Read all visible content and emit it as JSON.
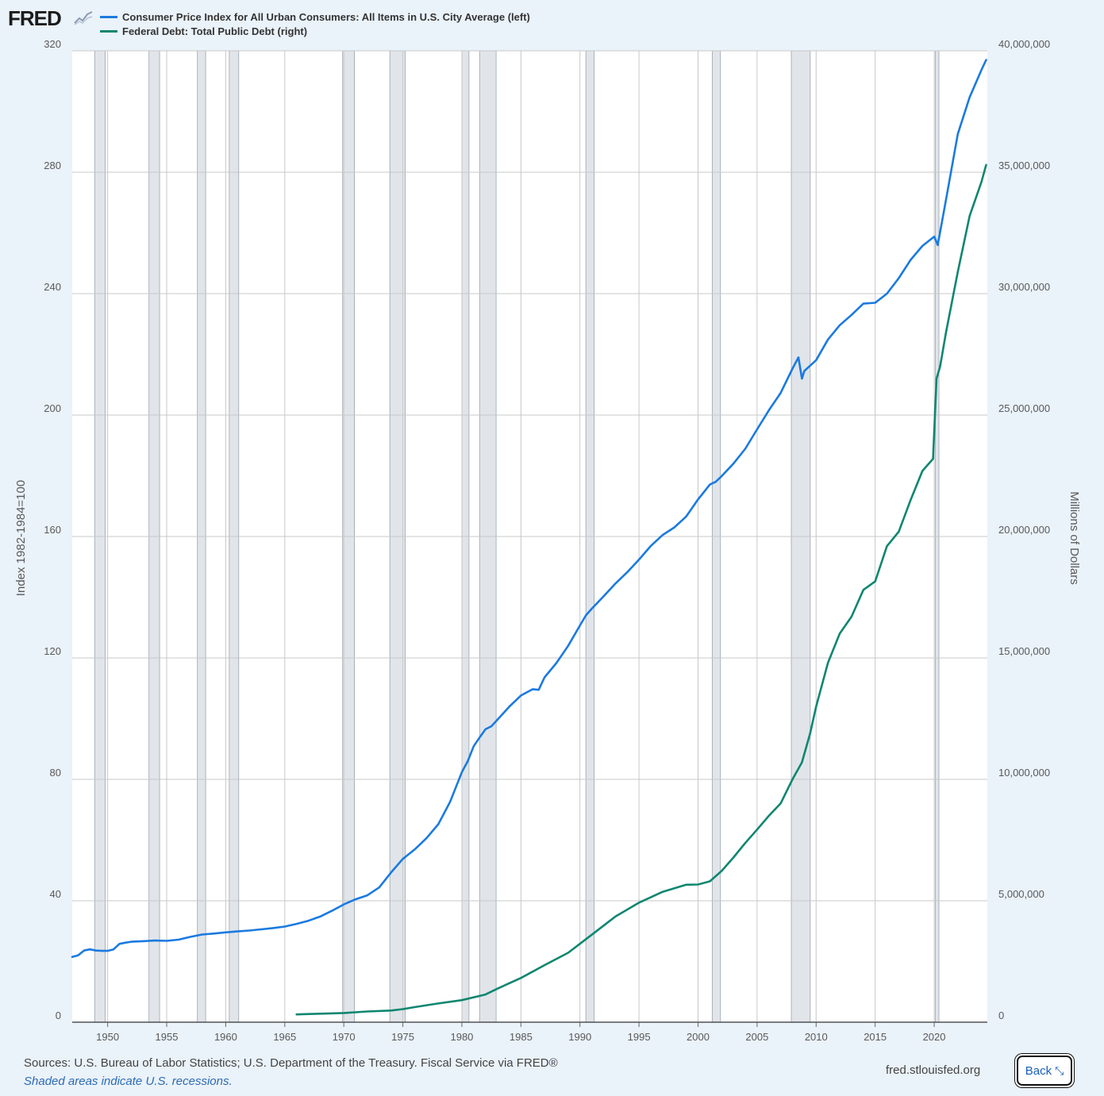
{
  "header": {
    "logo_text": "FRED",
    "logo_icon": "fred-chart-icon"
  },
  "colors": {
    "background": "#eaf2fa",
    "plot_background": "#ffffff",
    "grid": "#c8c8c8",
    "recession": "#e1e5ea",
    "cpi": "#1a7ae0",
    "debt": "#0f8670"
  },
  "chart_data": {
    "type": "line",
    "title": "",
    "xlabel": "",
    "ylabel_left": "Index 1982-1984=100",
    "ylabel_right": "Millions of Dollars",
    "xlim": [
      1947,
      2024.5
    ],
    "ylim_left": [
      0,
      320
    ],
    "ylim_right": [
      0,
      40000000
    ],
    "x_ticks": [
      1950,
      1955,
      1960,
      1965,
      1970,
      1975,
      1980,
      1985,
      1990,
      1995,
      2000,
      2005,
      2010,
      2015,
      2020
    ],
    "y_ticks_left": [
      0,
      40,
      80,
      120,
      160,
      200,
      240,
      280,
      320
    ],
    "y_ticks_right": [
      0,
      5000000,
      10000000,
      15000000,
      20000000,
      25000000,
      30000000,
      35000000,
      40000000
    ],
    "y_tick_labels_right": [
      "0",
      "5,000,000",
      "10,000,000",
      "15,000,000",
      "20,000,000",
      "25,000,000",
      "30,000,000",
      "35,000,000",
      "40,000,000"
    ],
    "grid": true,
    "legend_position": "top-left",
    "recessions": [
      [
        1948.9,
        1949.8
      ],
      [
        1953.5,
        1954.4
      ],
      [
        1957.6,
        1958.3
      ],
      [
        1960.3,
        1961.1
      ],
      [
        1969.9,
        1970.9
      ],
      [
        1973.9,
        1975.2
      ],
      [
        1980.0,
        1980.6
      ],
      [
        1981.5,
        1982.9
      ],
      [
        1990.5,
        1991.2
      ],
      [
        2001.2,
        2001.9
      ],
      [
        2007.9,
        2009.5
      ],
      [
        2020.1,
        2020.4
      ]
    ],
    "series": [
      {
        "name": "Consumer Price Index for All Urban Consumers: All Items in U.S. City Average (left)",
        "axis": "left",
        "x": [
          1947,
          1947.5,
          1948,
          1948.5,
          1949,
          1949.5,
          1950,
          1950.5,
          1951,
          1951.5,
          1952,
          1953,
          1954,
          1955,
          1956,
          1957,
          1958,
          1959,
          1960,
          1961,
          1962,
          1963,
          1964,
          1965,
          1966,
          1967,
          1968,
          1969,
          1970,
          1971,
          1972,
          1973,
          1974,
          1975,
          1976,
          1977,
          1978,
          1979,
          1980,
          1980.5,
          1981,
          1981.5,
          1982,
          1982.5,
          1983,
          1984,
          1985,
          1986,
          1986.5,
          1987,
          1988,
          1989,
          1990,
          1990.5,
          1991,
          1992,
          1993,
          1994,
          1995,
          1996,
          1997,
          1998,
          1999,
          2000,
          2001,
          2001.5,
          2002,
          2003,
          2004,
          2005,
          2006,
          2007,
          2008,
          2008.5,
          2008.8,
          2009,
          2010,
          2011,
          2012,
          2013,
          2014,
          2015,
          2016,
          2017,
          2018,
          2019,
          2020,
          2020.3,
          2021,
          2022,
          2023,
          2024,
          2024.4
        ],
        "values": [
          21.5,
          22.0,
          23.6,
          24.0,
          23.6,
          23.5,
          23.5,
          24.0,
          25.8,
          26.2,
          26.5,
          26.7,
          26.9,
          26.8,
          27.2,
          28.1,
          28.9,
          29.2,
          29.6,
          29.9,
          30.2,
          30.6,
          31.0,
          31.5,
          32.4,
          33.4,
          34.8,
          36.7,
          38.8,
          40.5,
          41.8,
          44.4,
          49.3,
          53.8,
          56.9,
          60.6,
          65.2,
          72.6,
          82.4,
          86.0,
          90.9,
          93.8,
          96.5,
          97.5,
          99.6,
          103.9,
          107.6,
          109.7,
          109.5,
          113.6,
          118.3,
          124.0,
          130.7,
          134.0,
          136.2,
          140.3,
          144.5,
          148.2,
          152.4,
          156.9,
          160.5,
          163.0,
          166.6,
          172.2,
          177.1,
          178.0,
          179.9,
          184.0,
          188.9,
          195.3,
          201.6,
          207.3,
          215.3,
          219.0,
          212.0,
          214.5,
          218.1,
          224.9,
          229.6,
          233.0,
          236.7,
          237.0,
          240.0,
          245.1,
          251.1,
          255.7,
          258.8,
          256.0,
          270.9,
          292.6,
          304.7,
          313.7,
          317.0
        ]
      },
      {
        "name": "Federal Debt: Total Public Debt (right)",
        "axis": "right",
        "x": [
          1966,
          1968,
          1970,
          1972,
          1974,
          1975,
          1976,
          1978,
          1980,
          1982,
          1983,
          1985,
          1987,
          1989,
          1990,
          1991,
          1993,
          1995,
          1997,
          1999,
          2000,
          2001,
          2002,
          2003,
          2004,
          2005,
          2006,
          2007,
          2008,
          2008.8,
          2009.5,
          2010,
          2011,
          2012,
          2013,
          2014,
          2015,
          2016,
          2017,
          2018,
          2019,
          2019.9,
          2020.2,
          2020.5,
          2021,
          2022,
          2023,
          2024,
          2024.4
        ],
        "values": [
          320000,
          350000,
          380000,
          440000,
          480000,
          540000,
          620000,
          770000,
          910000,
          1140000,
          1380000,
          1820000,
          2350000,
          2860000,
          3230000,
          3600000,
          4350000,
          4920000,
          5370000,
          5660000,
          5670000,
          5800000,
          6230000,
          6780000,
          7380000,
          7930000,
          8500000,
          9010000,
          10000000,
          10700000,
          11900000,
          13000000,
          14800000,
          16000000,
          16700000,
          17800000,
          18150000,
          19600000,
          20200000,
          21500000,
          22700000,
          23200000,
          26500000,
          27000000,
          28400000,
          30900000,
          33200000,
          34600000,
          35300000
        ]
      }
    ]
  },
  "footer": {
    "sources": "Sources: U.S. Bureau of Labor Statistics; U.S. Department of the Treasury. Fiscal Service via FRED®",
    "note": "Shaded areas indicate U.S. recessions.",
    "site": "fred.stlouisfed.org",
    "back_label": "Back",
    "back_icon": "collapse-icon"
  }
}
